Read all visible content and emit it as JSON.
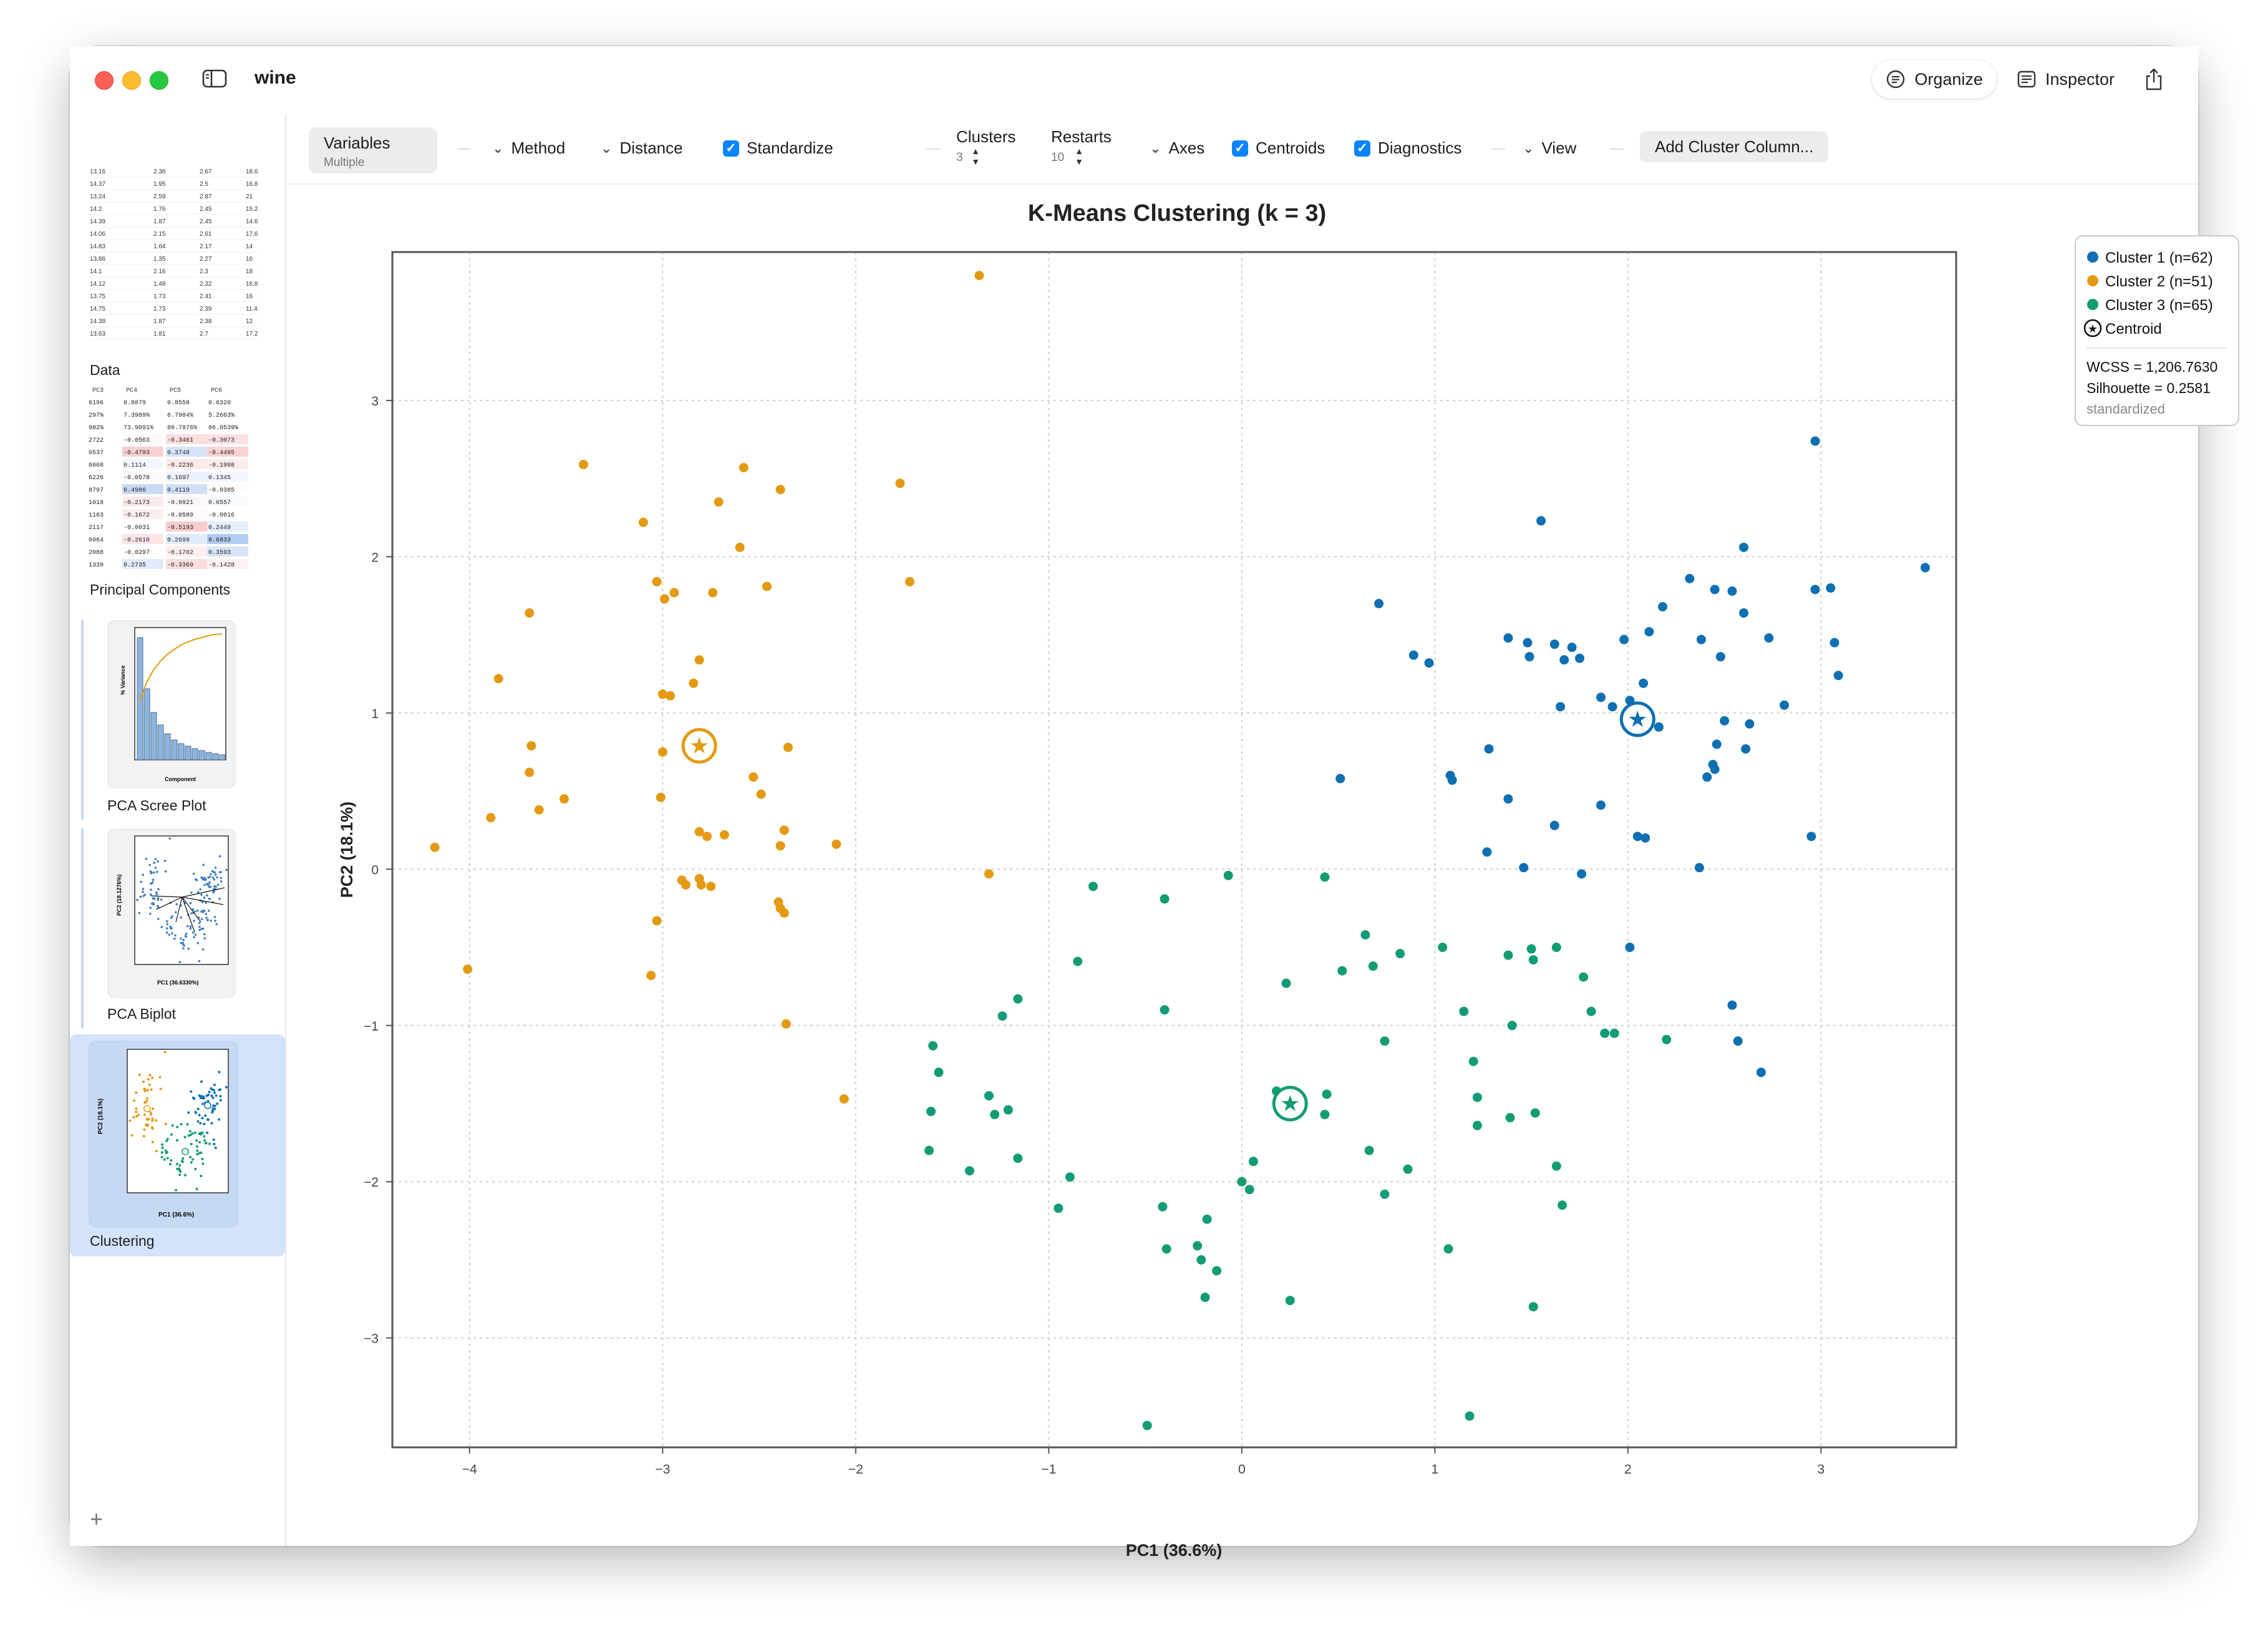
{
  "window": {
    "title": "wine"
  },
  "toolbar": {
    "organize_label": "Organize",
    "inspector_label": "Inspector",
    "variables_label": "Variables",
    "variables_sub": "Multiple",
    "method_label": "Method",
    "distance_label": "Distance",
    "standardize_label": "Standardize",
    "clusters_label": "Clusters",
    "clusters_value": "3",
    "restarts_label": "Restarts",
    "restarts_value": "10",
    "axes_label": "Axes",
    "centroids_label": "Centroids",
    "diagnostics_label": "Diagnostics",
    "view_label": "View",
    "add_cluster_label": "Add Cluster Column..."
  },
  "sidebar": {
    "items": [
      {
        "label": "Data"
      },
      {
        "label": "Principal Components"
      },
      {
        "label": "PCA Scree Plot"
      },
      {
        "label": "PCA Biplot"
      },
      {
        "label": "Clustering"
      }
    ],
    "data_rows": [
      [
        "13.16",
        "2.36",
        "2.67",
        "18.6"
      ],
      [
        "14.37",
        "1.95",
        "2.5",
        "16.8"
      ],
      [
        "13.24",
        "2.59",
        "2.87",
        "21"
      ],
      [
        "14.2",
        "1.76",
        "2.45",
        "15.2"
      ],
      [
        "14.39",
        "1.87",
        "2.45",
        "14.6"
      ],
      [
        "14.06",
        "2.15",
        "2.61",
        "17.6"
      ],
      [
        "14.83",
        "1.64",
        "2.17",
        "14"
      ],
      [
        "13.86",
        "1.35",
        "2.27",
        "16"
      ],
      [
        "14.1",
        "2.16",
        "2.3",
        "18"
      ],
      [
        "14.12",
        "1.48",
        "2.32",
        "16.8"
      ],
      [
        "13.75",
        "1.73",
        "2.41",
        "16"
      ],
      [
        "14.75",
        "1.73",
        "2.39",
        "11.4"
      ],
      [
        "14.38",
        "1.87",
        "2.38",
        "12"
      ],
      [
        "13.63",
        "1.81",
        "2.7",
        "17.2"
      ]
    ],
    "pc_header": [
      "PC3",
      "PC4",
      "PC5",
      "PC6"
    ],
    "pc_rows": [
      [
        "6196",
        "0.8879",
        "0.8558",
        "0.6320"
      ],
      [
        "297%",
        "7.3989%",
        "6.7984%",
        "5.2663%"
      ],
      [
        "982%",
        "73.9891%",
        "80.7876%",
        "86.0539%"
      ],
      [
        "2722",
        "-0.0563",
        "-0.3461",
        "-0.3073"
      ],
      [
        "0537",
        "-0.4793",
        "0.3748",
        "-0.4495"
      ],
      [
        "6068",
        "0.1114",
        "-0.2236",
        "-0.1998"
      ],
      [
        "6226",
        "-0.0578",
        "0.1697",
        "0.1345"
      ],
      [
        "8797",
        "0.4986",
        "0.4119",
        "-0.0385"
      ],
      [
        "1018",
        "-0.2173",
        "-0.0921",
        "0.0557"
      ],
      [
        "1163",
        "-0.1672",
        "-0.0589",
        "-0.0016"
      ],
      [
        "2117",
        "-0.0031",
        "-0.5193",
        "0.2449"
      ],
      [
        "0964",
        "-0.2610",
        "0.2699",
        "0.6833"
      ],
      [
        "2088",
        "-0.0297",
        "-0.1702",
        "0.3593"
      ],
      [
        "1339",
        "0.2735",
        "-0.3369",
        "-0.1428"
      ]
    ]
  },
  "chart_data": {
    "type": "scatter",
    "title": "K-Means Clustering (k = 3)",
    "xlabel": "PC1 (36.6%)",
    "ylabel": "PC2 (18.1%)",
    "xlim": [
      -4.4,
      3.7
    ],
    "ylim": [
      -3.7,
      3.95
    ],
    "xticks": [
      -4,
      -3,
      -2,
      -1,
      0,
      1,
      2,
      3
    ],
    "yticks": [
      -3,
      -2,
      -1,
      0,
      1,
      2,
      3
    ],
    "grid": true,
    "legend_position": "top-right",
    "series": [
      {
        "name": "Cluster 1  (n=62)",
        "color": "#0f6fb3",
        "centroid": [
          2.05,
          0.96
        ],
        "x": [
          3.54,
          2.97,
          1.55,
          2.6,
          2.32,
          2.45,
          2.54,
          2.97,
          3.05,
          2.6,
          2.11,
          2.18,
          1.48,
          0.71,
          0.89,
          0.97,
          1.38,
          1.49,
          1.62,
          1.71,
          1.67,
          1.98,
          2.38,
          2.48,
          2.73,
          1.86,
          1.75,
          2.08,
          1.65,
          1.92,
          2.01,
          2.81,
          3.09,
          3.07,
          2.63,
          2.16,
          2.46,
          2.5,
          2.44,
          2.41,
          2.45,
          2.08,
          2.03,
          2.61,
          1.08,
          1.09,
          0.51,
          1.38,
          1.86,
          2.05,
          1.62,
          1.27,
          1.28,
          2.95,
          2.37,
          2.09,
          1.46,
          1.76,
          2.01,
          2.54,
          2.57,
          2.69
        ],
        "y": [
          1.93,
          2.74,
          2.23,
          2.06,
          1.86,
          1.79,
          1.78,
          1.79,
          1.8,
          1.64,
          1.52,
          1.68,
          1.45,
          1.7,
          1.37,
          1.32,
          1.48,
          1.36,
          1.44,
          1.42,
          1.34,
          1.47,
          1.47,
          1.36,
          1.48,
          1.1,
          1.35,
          1.19,
          1.04,
          1.04,
          1.08,
          1.05,
          1.24,
          1.45,
          0.93,
          0.91,
          0.8,
          0.95,
          0.67,
          0.59,
          0.64,
          0.93,
          0.93,
          0.77,
          0.6,
          0.57,
          0.58,
          0.45,
          0.41,
          0.21,
          0.28,
          0.11,
          0.77,
          0.21,
          0.01,
          0.2,
          0.01,
          -0.03,
          -0.5,
          -0.87,
          -1.1,
          -1.3
        ]
      },
      {
        "name": "Cluster 2  (n=51)",
        "color": "#e39a12",
        "centroid": [
          -2.81,
          0.79
        ],
        "x": [
          -1.36,
          -3.41,
          -2.58,
          -2.39,
          -1.77,
          -2.71,
          -3.1,
          -2.6,
          -1.72,
          -3.03,
          -2.99,
          -2.94,
          -2.74,
          -2.81,
          -2.46,
          -3.69,
          -2.84,
          -3.85,
          -3.0,
          -2.96,
          -3.0,
          -3.68,
          -3.69,
          -2.53,
          -2.49,
          -2.35,
          -3.64,
          -3.51,
          -3.01,
          -2.81,
          -2.77,
          -2.68,
          -2.37,
          -2.39,
          -3.89,
          -4.18,
          -2.81,
          -2.1,
          -2.9,
          -2.39,
          -2.88,
          -2.8,
          -2.75,
          -2.4,
          -2.37,
          -3.03,
          -3.06,
          -2.36,
          -4.01,
          -2.06,
          -1.31
        ],
        "y": [
          3.8,
          2.59,
          2.57,
          2.43,
          2.47,
          2.35,
          2.22,
          2.06,
          1.84,
          1.84,
          1.73,
          1.77,
          1.77,
          1.34,
          1.81,
          1.64,
          1.19,
          1.22,
          1.12,
          1.11,
          0.75,
          0.79,
          0.62,
          0.59,
          0.48,
          0.78,
          0.38,
          0.45,
          0.46,
          0.24,
          0.21,
          0.22,
          0.25,
          0.15,
          0.33,
          0.14,
          -0.06,
          0.16,
          -0.07,
          -0.25,
          -0.1,
          -0.1,
          -0.11,
          -0.21,
          -0.28,
          -0.33,
          -0.68,
          -0.99,
          -0.64,
          -1.47,
          -0.03
        ]
      },
      {
        "name": "Cluster 3  (n=65)",
        "color": "#129c75",
        "centroid": [
          0.25,
          -1.5
        ],
        "x": [
          -0.07,
          0.43,
          -0.77,
          -0.4,
          -0.85,
          -1.16,
          -1.24,
          -1.6,
          -1.57,
          -0.4,
          0.23,
          0.18,
          0.44,
          -1.31,
          -1.21,
          -1.16,
          -1.28,
          -1.61,
          -1.62,
          -1.41,
          -0.89,
          -0.95,
          -0.41,
          -0.39,
          -0.18,
          -0.23,
          -0.21,
          -0.13,
          -0.19,
          0.0,
          0.04,
          0.06,
          0.25,
          -0.49,
          0.43,
          0.52,
          0.68,
          0.74,
          0.64,
          0.82,
          0.66,
          0.86,
          0.74,
          1.04,
          1.15,
          1.2,
          1.22,
          1.38,
          1.4,
          1.5,
          1.51,
          1.52,
          1.63,
          1.66,
          1.77,
          1.81,
          1.88,
          1.93,
          2.2,
          1.63,
          1.39,
          1.22,
          1.07,
          1.18,
          1.51
        ],
        "y": [
          -0.04,
          -0.05,
          -0.11,
          -0.19,
          -0.59,
          -0.83,
          -0.94,
          -1.13,
          -1.3,
          -0.9,
          -0.73,
          -1.42,
          -1.44,
          -1.45,
          -1.54,
          -1.85,
          -1.57,
          -1.55,
          -1.8,
          -1.93,
          -1.97,
          -2.17,
          -2.16,
          -2.43,
          -2.24,
          -2.41,
          -2.5,
          -2.57,
          -2.74,
          -2.0,
          -2.05,
          -1.87,
          -2.76,
          -3.56,
          -1.57,
          -0.65,
          -0.62,
          -1.1,
          -0.42,
          -0.54,
          -1.8,
          -1.92,
          -2.08,
          -0.5,
          -0.91,
          -1.23,
          -1.46,
          -0.55,
          -1.0,
          -0.51,
          -0.58,
          -1.56,
          -1.9,
          -2.15,
          -0.69,
          -0.91,
          -1.05,
          -1.05,
          -1.09,
          -0.5,
          -1.59,
          -1.64,
          -2.43,
          -3.5,
          -2.8
        ]
      }
    ],
    "legend": {
      "items": [
        {
          "label": "Cluster 1  (n=62)",
          "color": "#0f6fb3"
        },
        {
          "label": "Cluster 2  (n=51)",
          "color": "#e39a12"
        },
        {
          "label": "Cluster 3  (n=65)",
          "color": "#129c75"
        },
        {
          "label": "Centroid",
          "color": "#000000"
        }
      ],
      "wcss": "WCSS = 1,206.7630",
      "silhouette": "Silhouette = 0.2581",
      "note": "standardized"
    }
  }
}
